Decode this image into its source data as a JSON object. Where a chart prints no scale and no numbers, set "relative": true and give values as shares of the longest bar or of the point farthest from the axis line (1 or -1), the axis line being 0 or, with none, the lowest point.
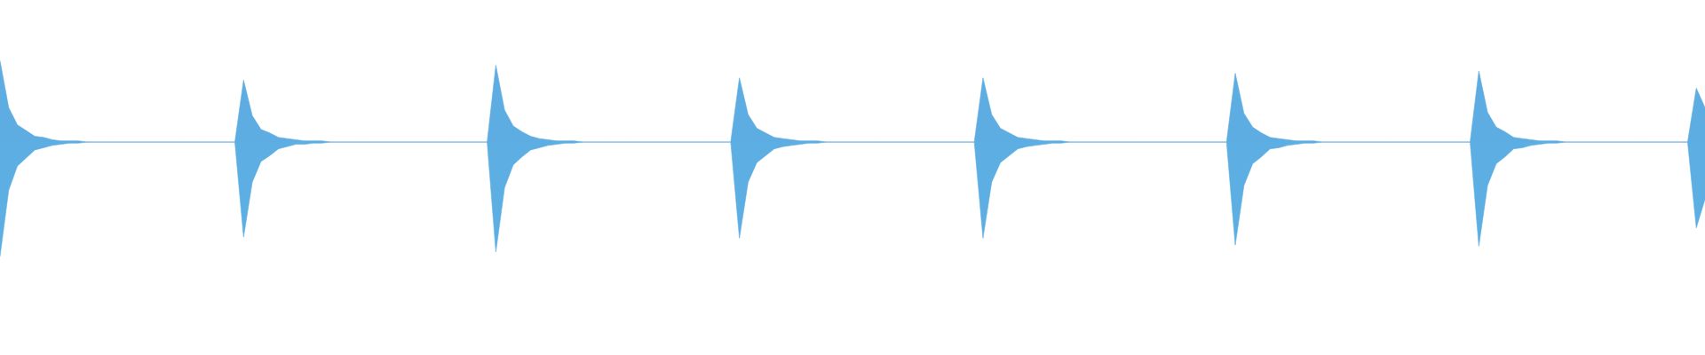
{
  "chart_data": {
    "type": "area",
    "relative": true,
    "grid": false,
    "legend": false,
    "categories": [
      null,
      null,
      null,
      null,
      null,
      null,
      null,
      null,
      null,
      null,
      null,
      null,
      null,
      null,
      null,
      null,
      null,
      null,
      null,
      null,
      null,
      null,
      null,
      null,
      null,
      null,
      null,
      null,
      null,
      null,
      null,
      null,
      null,
      null,
      null,
      null,
      null,
      null,
      null,
      null,
      null,
      null,
      null,
      null,
      null,
      null,
      null,
      null,
      null,
      null,
      null,
      null,
      null,
      null,
      null,
      null,
      null,
      null,
      null,
      null,
      null,
      null,
      null,
      null,
      null,
      null,
      null,
      null,
      null,
      null,
      null,
      null,
      null,
      null,
      null,
      null,
      null,
      null,
      null,
      null,
      null,
      null,
      null,
      null,
      null,
      null,
      null,
      null,
      null,
      null,
      null,
      null,
      null,
      null,
      null,
      null,
      null,
      null,
      null,
      null,
      null,
      null,
      null,
      null,
      null,
      null,
      null,
      null,
      null,
      null,
      null,
      null,
      null,
      null,
      null,
      null,
      null,
      null,
      null,
      null,
      null,
      null,
      null,
      null,
      null,
      null,
      null,
      null,
      null,
      null,
      null,
      null,
      null,
      null,
      null,
      null,
      null,
      null,
      null,
      null,
      null,
      null,
      null,
      null,
      null,
      null,
      null,
      null,
      null,
      null,
      null,
      null,
      null,
      null,
      null,
      null,
      null,
      null,
      null,
      null,
      null,
      null,
      null,
      null,
      null,
      null,
      null,
      null,
      null,
      null,
      null,
      null,
      null,
      null,
      null,
      null,
      null,
      null,
      null,
      null,
      null,
      null,
      null,
      null,
      null,
      null,
      null,
      null,
      null,
      null,
      null,
      null,
      null,
      null,
      null,
      null,
      null
    ],
    "series": [
      {
        "color": "#5dade2",
        "values": [
          0.71,
          0.3,
          0.15,
          0.1,
          0.05,
          0.04,
          0.02,
          0.01,
          0.01,
          0.01,
          0,
          0,
          0,
          0,
          0,
          0,
          0,
          0,
          0,
          0,
          0,
          0,
          0,
          0,
          0,
          0,
          0,
          0,
          0.54,
          0.23,
          0.11,
          0.08,
          0.04,
          0.03,
          0.02,
          0.01,
          0.01,
          0.01,
          0,
          0,
          0,
          0,
          0,
          0,
          0,
          0,
          0,
          0,
          0,
          0,
          0,
          0,
          0,
          0,
          0,
          0,
          0,
          0.67,
          0.28,
          0.14,
          0.09,
          0.05,
          0.03,
          0.02,
          0.01,
          0.01,
          0.01,
          0,
          0,
          0,
          0,
          0,
          0,
          0,
          0,
          0,
          0,
          0,
          0,
          0,
          0,
          0,
          0,
          0,
          0,
          0.56,
          0.24,
          0.12,
          0.08,
          0.04,
          0.03,
          0.02,
          0.01,
          0.01,
          0.01,
          0,
          0,
          0,
          0,
          0,
          0,
          0,
          0,
          0,
          0,
          0,
          0,
          0,
          0,
          0,
          0,
          0,
          0,
          0.56,
          0.24,
          0.12,
          0.08,
          0.04,
          0.03,
          0.02,
          0.01,
          0.01,
          0.01,
          0,
          0,
          0,
          0,
          0,
          0,
          0,
          0,
          0,
          0,
          0,
          0,
          0,
          0,
          0,
          0,
          0,
          0,
          0,
          0.6,
          0.25,
          0.13,
          0.08,
          0.04,
          0.03,
          0.02,
          0.01,
          0.01,
          0.01,
          0,
          0,
          0,
          0,
          0,
          0,
          0,
          0,
          0,
          0,
          0,
          0,
          0,
          0,
          0,
          0,
          0,
          0,
          0.62,
          0.26,
          0.13,
          0.09,
          0.04,
          0.03,
          0.02,
          0.01,
          0.01,
          0.01,
          0,
          0,
          0,
          0,
          0,
          0,
          0,
          0,
          0,
          0,
          0,
          0,
          0,
          0,
          0,
          0.47,
          0.3
        ]
      },
      {
        "color": "#5caee3",
        "values": [
          -1,
          -0.42,
          -0.21,
          -0.14,
          -0.07,
          -0.05,
          -0.03,
          -0.02,
          -0.01,
          -0.01,
          0,
          0,
          0,
          0,
          0,
          0,
          0,
          0,
          0,
          0,
          0,
          0,
          0,
          0,
          0,
          0,
          0,
          0,
          -0.83,
          -0.35,
          -0.17,
          -0.12,
          -0.06,
          -0.04,
          -0.02,
          -0.02,
          -0.01,
          -0.01,
          0,
          0,
          0,
          0,
          0,
          0,
          0,
          0,
          0,
          0,
          0,
          0,
          0,
          0,
          0,
          0,
          0,
          0,
          0,
          -0.96,
          -0.4,
          -0.2,
          -0.13,
          -0.07,
          -0.05,
          -0.03,
          -0.02,
          -0.01,
          -0.01,
          0,
          0,
          0,
          0,
          0,
          0,
          0,
          0,
          0,
          0,
          0,
          0,
          0,
          0,
          0,
          0,
          0,
          0,
          -0.84,
          -0.35,
          -0.18,
          -0.12,
          -0.06,
          -0.04,
          -0.03,
          -0.02,
          -0.01,
          -0.01,
          0,
          0,
          0,
          0,
          0,
          0,
          0,
          0,
          0,
          0,
          0,
          0,
          0,
          0,
          0,
          0,
          0,
          0,
          -0.84,
          -0.35,
          -0.18,
          -0.12,
          -0.06,
          -0.04,
          -0.03,
          -0.02,
          -0.01,
          -0.01,
          0,
          0,
          0,
          0,
          0,
          0,
          0,
          0,
          0,
          0,
          0,
          0,
          0,
          0,
          0,
          0,
          0,
          0,
          0,
          -0.9,
          -0.38,
          -0.19,
          -0.13,
          -0.06,
          -0.05,
          -0.03,
          -0.02,
          -0.01,
          -0.01,
          0,
          0,
          0,
          0,
          0,
          0,
          0,
          0,
          0,
          0,
          0,
          0,
          0,
          0,
          0,
          0,
          0,
          0,
          -0.91,
          -0.38,
          -0.19,
          -0.13,
          -0.06,
          -0.05,
          -0.03,
          -0.02,
          -0.01,
          -0.01,
          0,
          0,
          0,
          0,
          0,
          0,
          0,
          0,
          0,
          0,
          0,
          0,
          0,
          0,
          0,
          -0.75,
          -0.5
        ]
      }
    ]
  }
}
